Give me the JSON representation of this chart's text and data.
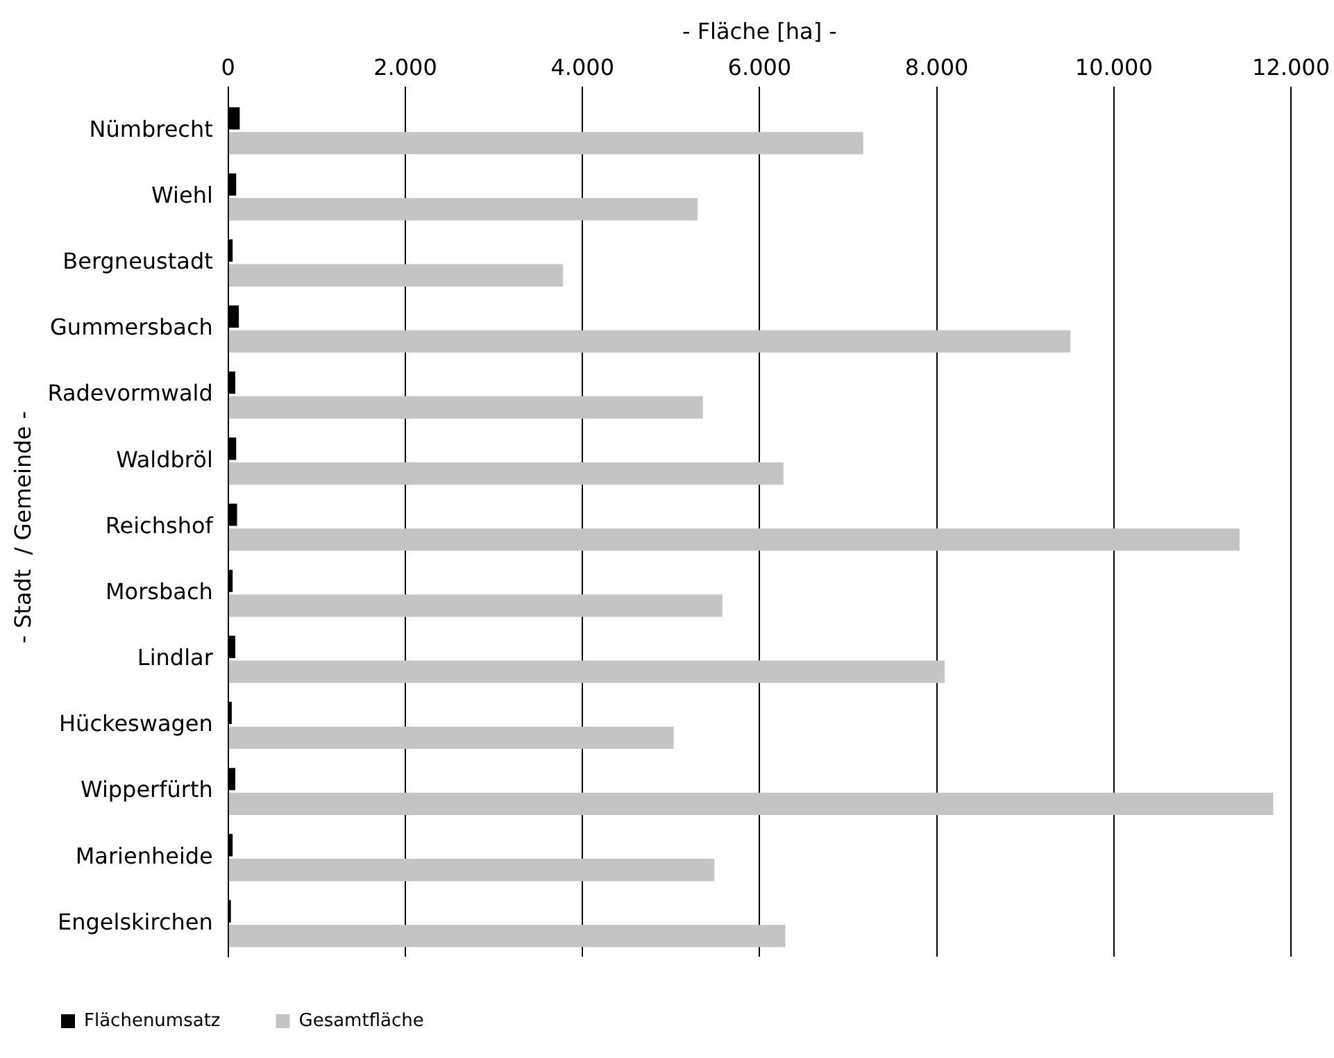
{
  "chart_data": {
    "type": "bar",
    "orientation": "horizontal",
    "xlabel": "- Fläche [ha] -",
    "ylabel": "- Stadt  / Gemeinde -",
    "categories": [
      "Nümbrecht",
      "Wiehl",
      "Bergneustadt",
      "Gummersbach",
      "Radevormwald",
      "Waldbröl",
      "Reichshof",
      "Morsbach",
      "Lindlar",
      "Hückeswagen",
      "Wipperfürth",
      "Marienheide",
      "Engelskirchen"
    ],
    "series": [
      {
        "name": "Flächenumsatz",
        "color": "#000000",
        "values": [
          130,
          90,
          50,
          120,
          80,
          90,
          100,
          50,
          80,
          40,
          80,
          50,
          30
        ]
      },
      {
        "name": "Gesamtfläche",
        "color": "#c4c4c4",
        "values": [
          7170,
          5300,
          3780,
          9510,
          5360,
          6270,
          11420,
          5580,
          8090,
          5030,
          11800,
          5490,
          6290
        ]
      }
    ],
    "xlim": [
      0,
      12000
    ],
    "xticks": [
      {
        "value": 0,
        "label": "0"
      },
      {
        "value": 2000,
        "label": "2.000"
      },
      {
        "value": 4000,
        "label": "4.000"
      },
      {
        "value": 6000,
        "label": "6.000"
      },
      {
        "value": 8000,
        "label": "8.000"
      },
      {
        "value": 10000,
        "label": "10.000"
      },
      {
        "value": 12000,
        "label": "12.000"
      }
    ],
    "grid": "x",
    "legend": "bottom left"
  }
}
